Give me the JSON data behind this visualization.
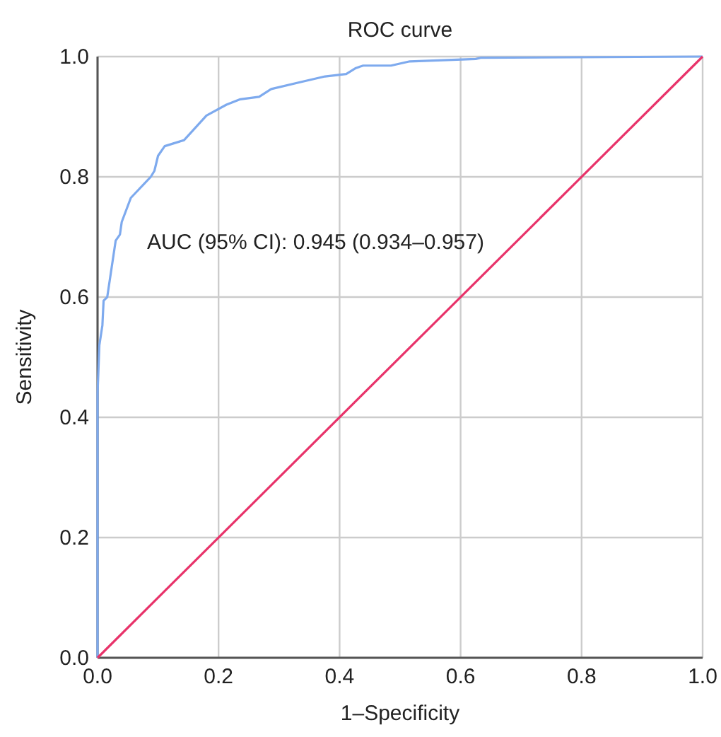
{
  "chart_data": {
    "type": "line",
    "title": "ROC curve",
    "xlabel": "1–Specificity",
    "ylabel": "Sensitivity",
    "annotations": [
      "AUC (95% CI): 0.945 (0.934–0.957)"
    ],
    "xlim": [
      0,
      1
    ],
    "ylim": [
      0,
      1
    ],
    "xticks": [
      {
        "value": 0,
        "label": "0.0"
      },
      {
        "value": 0.2,
        "label": "0.2"
      },
      {
        "value": 0.4,
        "label": "0.4"
      },
      {
        "value": 0.6,
        "label": "0.6"
      },
      {
        "value": 0.8,
        "label": "0.8"
      },
      {
        "value": 1,
        "label": "1.0"
      }
    ],
    "yticks": [
      {
        "value": 0,
        "label": "0.0"
      },
      {
        "value": 0.2,
        "label": "0.2"
      },
      {
        "value": 0.4,
        "label": "0.4"
      },
      {
        "value": 0.6,
        "label": "0.6"
      },
      {
        "value": 0.8,
        "label": "0.8"
      },
      {
        "value": 1,
        "label": "1.0"
      }
    ],
    "grid": true,
    "marker": "none",
    "series": [
      {
        "color": "#7eaaee",
        "x": [
          0,
          0,
          0.003,
          0.008,
          0.01,
          0.016,
          0.03,
          0.037,
          0.04,
          0.055,
          0.088,
          0.094,
          0.1,
          0.111,
          0.143,
          0.18,
          0.213,
          0.236,
          0.267,
          0.287,
          0.337,
          0.376,
          0.411,
          0.427,
          0.439,
          0.485,
          0.516,
          0.625,
          0.633,
          1
        ],
        "values": [
          0,
          0.44,
          0.52,
          0.553,
          0.594,
          0.6,
          0.694,
          0.704,
          0.725,
          0.765,
          0.8,
          0.81,
          0.835,
          0.851,
          0.861,
          0.902,
          0.92,
          0.929,
          0.933,
          0.946,
          0.958,
          0.967,
          0.971,
          0.981,
          0.985,
          0.985,
          0.992,
          0.996,
          0.998,
          1
        ]
      },
      {
        "color": "#e8336a",
        "x": [
          0,
          1
        ],
        "values": [
          0,
          1
        ]
      }
    ]
  }
}
